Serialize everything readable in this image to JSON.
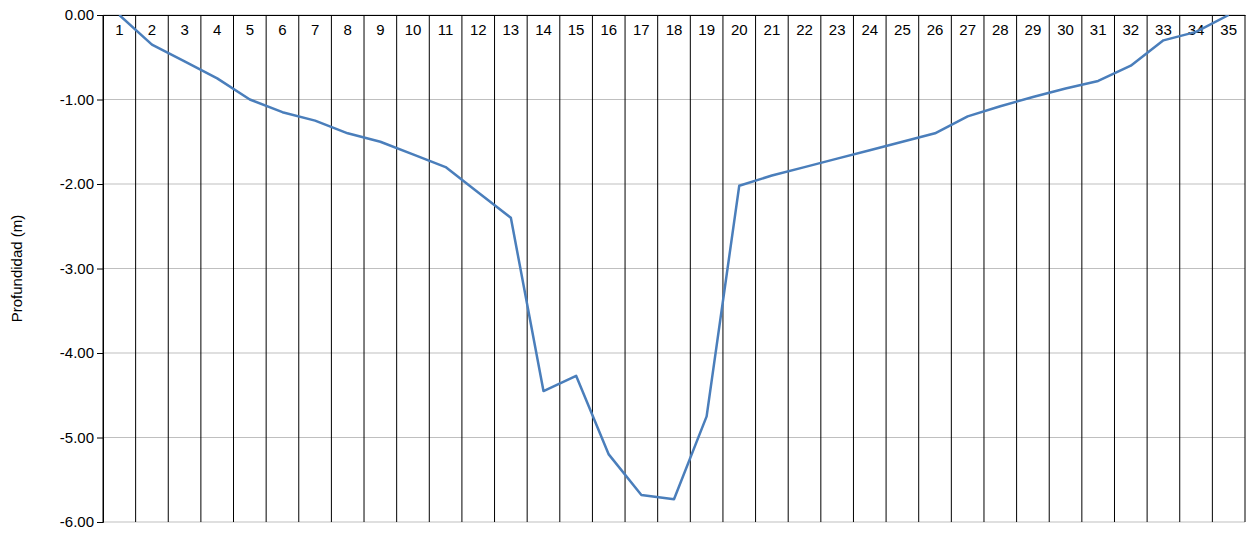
{
  "chart_data": {
    "type": "line",
    "y_label": "Profundidad (m)",
    "categories": [
      "1",
      "2",
      "3",
      "4",
      "5",
      "6",
      "7",
      "8",
      "9",
      "10",
      "11",
      "12",
      "13",
      "14",
      "15",
      "16",
      "17",
      "18",
      "19",
      "20",
      "21",
      "22",
      "23",
      "24",
      "25",
      "26",
      "27",
      "28",
      "29",
      "30",
      "31",
      "32",
      "33",
      "34",
      "35"
    ],
    "values": [
      0.0,
      -0.35,
      -0.55,
      -0.75,
      -1.0,
      -1.15,
      -1.25,
      -1.4,
      -1.5,
      -1.65,
      -1.8,
      -2.1,
      -2.4,
      -4.45,
      -4.27,
      -5.2,
      -5.68,
      -5.73,
      -4.75,
      -2.02,
      -1.9,
      -1.8,
      -1.7,
      -1.6,
      -1.5,
      -1.4,
      -1.2,
      -1.08,
      -0.97,
      -0.87,
      -0.78,
      -0.6,
      -0.3,
      -0.2,
      0.0
    ],
    "color": "#4a7ebb",
    "ylim": [
      -6,
      0
    ],
    "yticks": [
      {
        "value": 0,
        "label": "0.00"
      },
      {
        "value": -1,
        "label": "-1.00"
      },
      {
        "value": -2,
        "label": "-2.00"
      },
      {
        "value": -3,
        "label": "-3.00"
      },
      {
        "value": -4,
        "label": "-4.00"
      },
      {
        "value": -5,
        "label": "-5.00"
      },
      {
        "value": -6,
        "label": "-6.00"
      }
    ],
    "grid": true
  }
}
